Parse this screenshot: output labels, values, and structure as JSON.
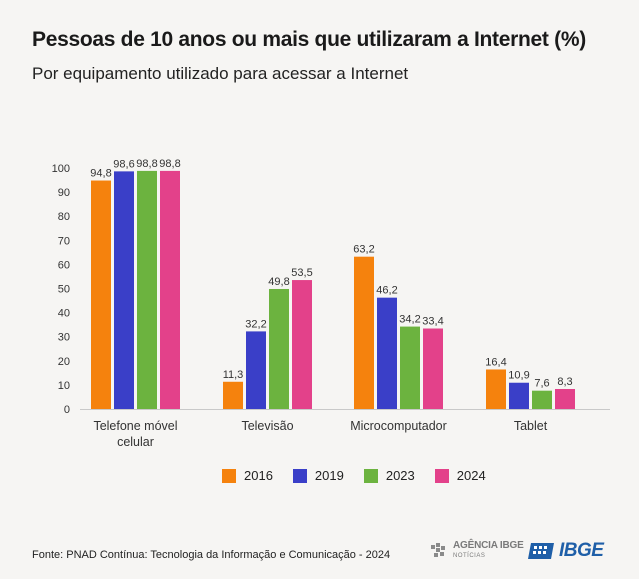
{
  "header": {
    "title": "Pessoas de 10 anos ou mais que utilizaram a Internet (%)",
    "subtitle": "Por equipamento utilizado para acessar a Internet"
  },
  "chart_data": {
    "type": "bar",
    "categories": [
      "Telefone móvel celular",
      "Televisão",
      "Microcomputador",
      "Tablet"
    ],
    "category_lines": [
      [
        "Telefone móvel",
        "celular"
      ],
      [
        "Televisão"
      ],
      [
        "Microcomputador"
      ],
      [
        "Tablet"
      ]
    ],
    "series": [
      {
        "name": "2016",
        "color": "#f5820d",
        "values": [
          94.8,
          11.3,
          63.2,
          16.4
        ],
        "labels": [
          "94,8",
          "11,3",
          "63,2",
          "16,4"
        ]
      },
      {
        "name": "2019",
        "color": "#3a3fc8",
        "values": [
          98.6,
          32.2,
          46.2,
          10.9
        ],
        "labels": [
          "98,6",
          "32,2",
          "46,2",
          "10,9"
        ]
      },
      {
        "name": "2023",
        "color": "#6cb33f",
        "values": [
          98.8,
          49.8,
          34.2,
          7.6
        ],
        "labels": [
          "98,8",
          "49,8",
          "34,2",
          "7,6"
        ]
      },
      {
        "name": "2024",
        "color": "#e3418a",
        "values": [
          98.8,
          53.5,
          33.4,
          8.3
        ],
        "labels": [
          "98,8",
          "53,5",
          "33,4",
          "8,3"
        ]
      }
    ],
    "yticks": [
      0,
      10,
      20,
      30,
      40,
      50,
      60,
      70,
      80,
      90,
      100
    ],
    "ylim": [
      0,
      100
    ],
    "grid": false,
    "legend_position": "bottom"
  },
  "footer": {
    "source": "Fonte: PNAD Contínua: Tecnologia da Informação e Comunicação - 2024",
    "logo_agencia_line1": "AGÊNCIA IBGE",
    "logo_agencia_line2": "NOTÍCIAS",
    "logo_ibge": "IBGE"
  }
}
